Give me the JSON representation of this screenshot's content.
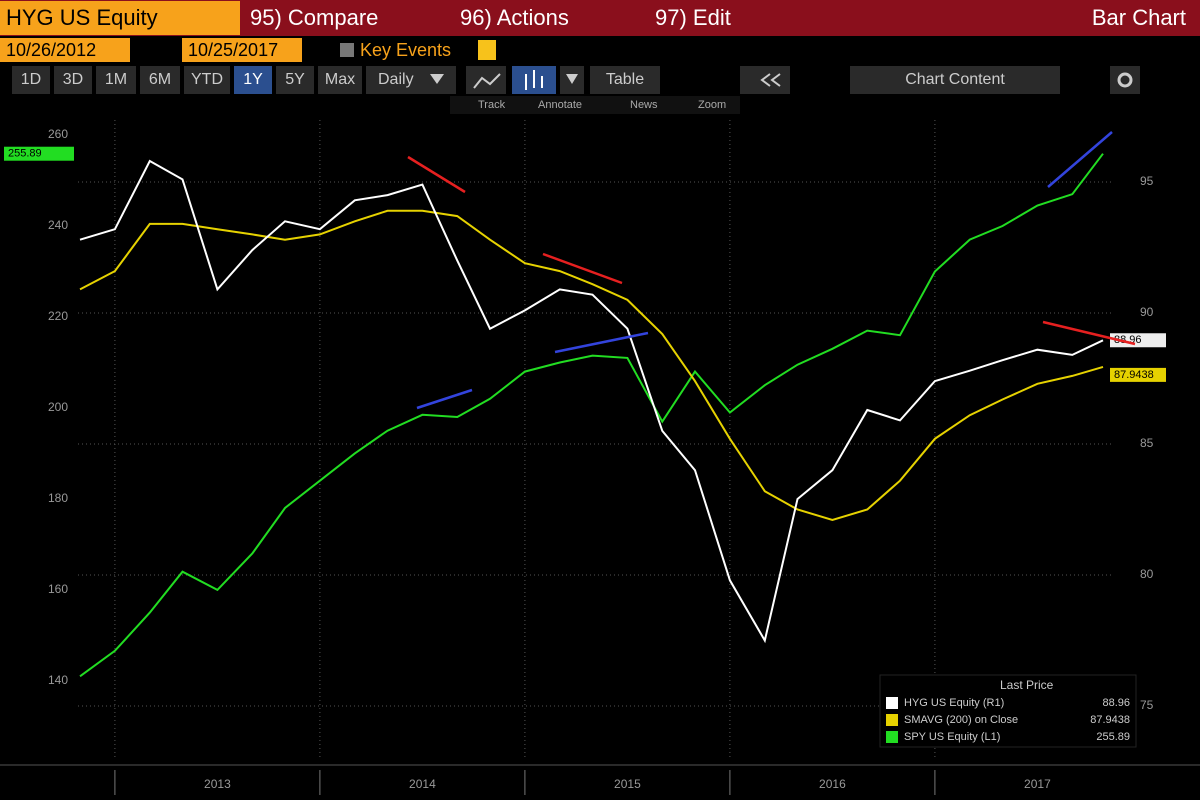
{
  "toolbar": {
    "ticker": "HYG US Equity",
    "menu": [
      "95) Compare",
      "96) Actions",
      "97) Edit"
    ],
    "mode": "Bar Chart",
    "start_date": "10/26/2012",
    "end_date": "10/25/2017",
    "key_events": "Key Events",
    "ranges": [
      "1D",
      "3D",
      "1M",
      "6M",
      "YTD",
      "1Y",
      "5Y",
      "Max"
    ],
    "frequency": "Daily",
    "table": "Table",
    "chart_content": "Chart Content",
    "tools": [
      "Track",
      "Annotate",
      "News",
      "Zoom"
    ]
  },
  "chart_data": {
    "type": "line",
    "legend_title": "Last Price",
    "legend": "lower right",
    "grid": true,
    "x": [
      2012.83,
      2013.0,
      2013.17,
      2013.33,
      2013.5,
      2013.67,
      2013.83,
      2014.0,
      2014.17,
      2014.33,
      2014.5,
      2014.67,
      2014.83,
      2015.0,
      2015.17,
      2015.33,
      2015.5,
      2015.67,
      2015.83,
      2016.0,
      2016.17,
      2016.33,
      2016.5,
      2016.67,
      2016.83,
      2017.0,
      2017.17,
      2017.33,
      2017.5,
      2017.67,
      2017.82
    ],
    "xlim": [
      2012.82,
      2017.82
    ],
    "xticks": [
      2013,
      2014,
      2015,
      2016,
      2017
    ],
    "ylim": [
      122.6,
      267.7
    ],
    "yticks": [
      260,
      240,
      220,
      200,
      180,
      160,
      140
    ],
    "y2lim": [
      72.94,
      98.13
    ],
    "y2ticks": [
      95,
      90,
      85,
      80,
      75
    ],
    "series": [
      {
        "name": "HYG US Equity (R1)",
        "color": "#ffffff",
        "axis": "y2",
        "values": [
          92.8,
          93.2,
          95.8,
          95.1,
          90.9,
          92.4,
          93.5,
          93.2,
          94.3,
          94.5,
          94.9,
          92.0,
          89.4,
          90.1,
          90.9,
          90.7,
          89.4,
          85.5,
          84.0,
          79.8,
          77.5,
          82.9,
          84.0,
          86.3,
          85.9,
          87.4,
          87.8,
          88.2,
          88.6,
          88.4,
          88.96
        ]
      },
      {
        "name": "SMAVG (200) on Close",
        "color": "#e6d200",
        "axis": "y2",
        "values": [
          90.9,
          91.6,
          93.4,
          93.4,
          93.2,
          93.0,
          92.8,
          93.0,
          93.5,
          93.9,
          93.9,
          93.7,
          92.8,
          91.9,
          91.6,
          91.1,
          90.5,
          89.2,
          87.4,
          85.2,
          83.2,
          82.5,
          82.1,
          82.5,
          83.6,
          85.2,
          86.1,
          86.7,
          87.3,
          87.6,
          87.9438
        ]
      },
      {
        "name": "SPY US Equity (L1)",
        "color": "#22dd22",
        "values": [
          141,
          146.6,
          155,
          164,
          160,
          168,
          178,
          184,
          190,
          195,
          198.5,
          198,
          202,
          208,
          210,
          211.5,
          211,
          197,
          208,
          199,
          205,
          209.5,
          213,
          217,
          216,
          230,
          237,
          240,
          244.5,
          247,
          255.89
        ]
      }
    ]
  }
}
